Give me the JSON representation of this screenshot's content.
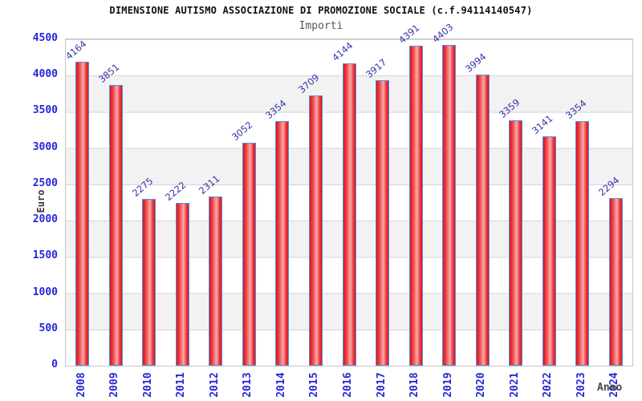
{
  "title": "DIMENSIONE AUTISMO ASSOCIAZIONE DI PROMOZIONE SOCIALE (c.f.94114140547)",
  "subtitle": "Importi",
  "chart_data": {
    "type": "bar",
    "title": "DIMENSIONE AUTISMO ASSOCIAZIONE DI PROMOZIONE SOCIALE (c.f.94114140547)",
    "subtitle": "Importi",
    "xlabel": "Anno",
    "ylabel": "Euro",
    "categories": [
      "2008",
      "2009",
      "2010",
      "2011",
      "2012",
      "2013",
      "2014",
      "2015",
      "2016",
      "2017",
      "2018",
      "2019",
      "2020",
      "2021",
      "2022",
      "2023",
      "2024"
    ],
    "values": [
      4164,
      3851,
      2275,
      2222,
      2311,
      3052,
      3354,
      3709,
      4144,
      3917,
      4391,
      4403,
      3994,
      3359,
      3141,
      3354,
      2294
    ],
    "ylim": [
      0,
      4500
    ],
    "ytick_step": 500,
    "grid": true,
    "band_shading": "alternating horizontal bands every 500",
    "legend": "none",
    "value_labels": "rotated above each bar"
  },
  "colors": {
    "axis_text": "#2727d8",
    "value_label": "#3434a8",
    "bar_border": "#4f94dd",
    "bar_dark": "#d8151d",
    "bar_mid": "#ee3a3f",
    "bar_light": "#f9abab",
    "band": "#f2f2f2",
    "gridline": "#d6d6d6",
    "plot_border": "#c6c6c6",
    "title": "#111111",
    "subtitle": "#565656",
    "axis_title": "#3a3a3a"
  }
}
